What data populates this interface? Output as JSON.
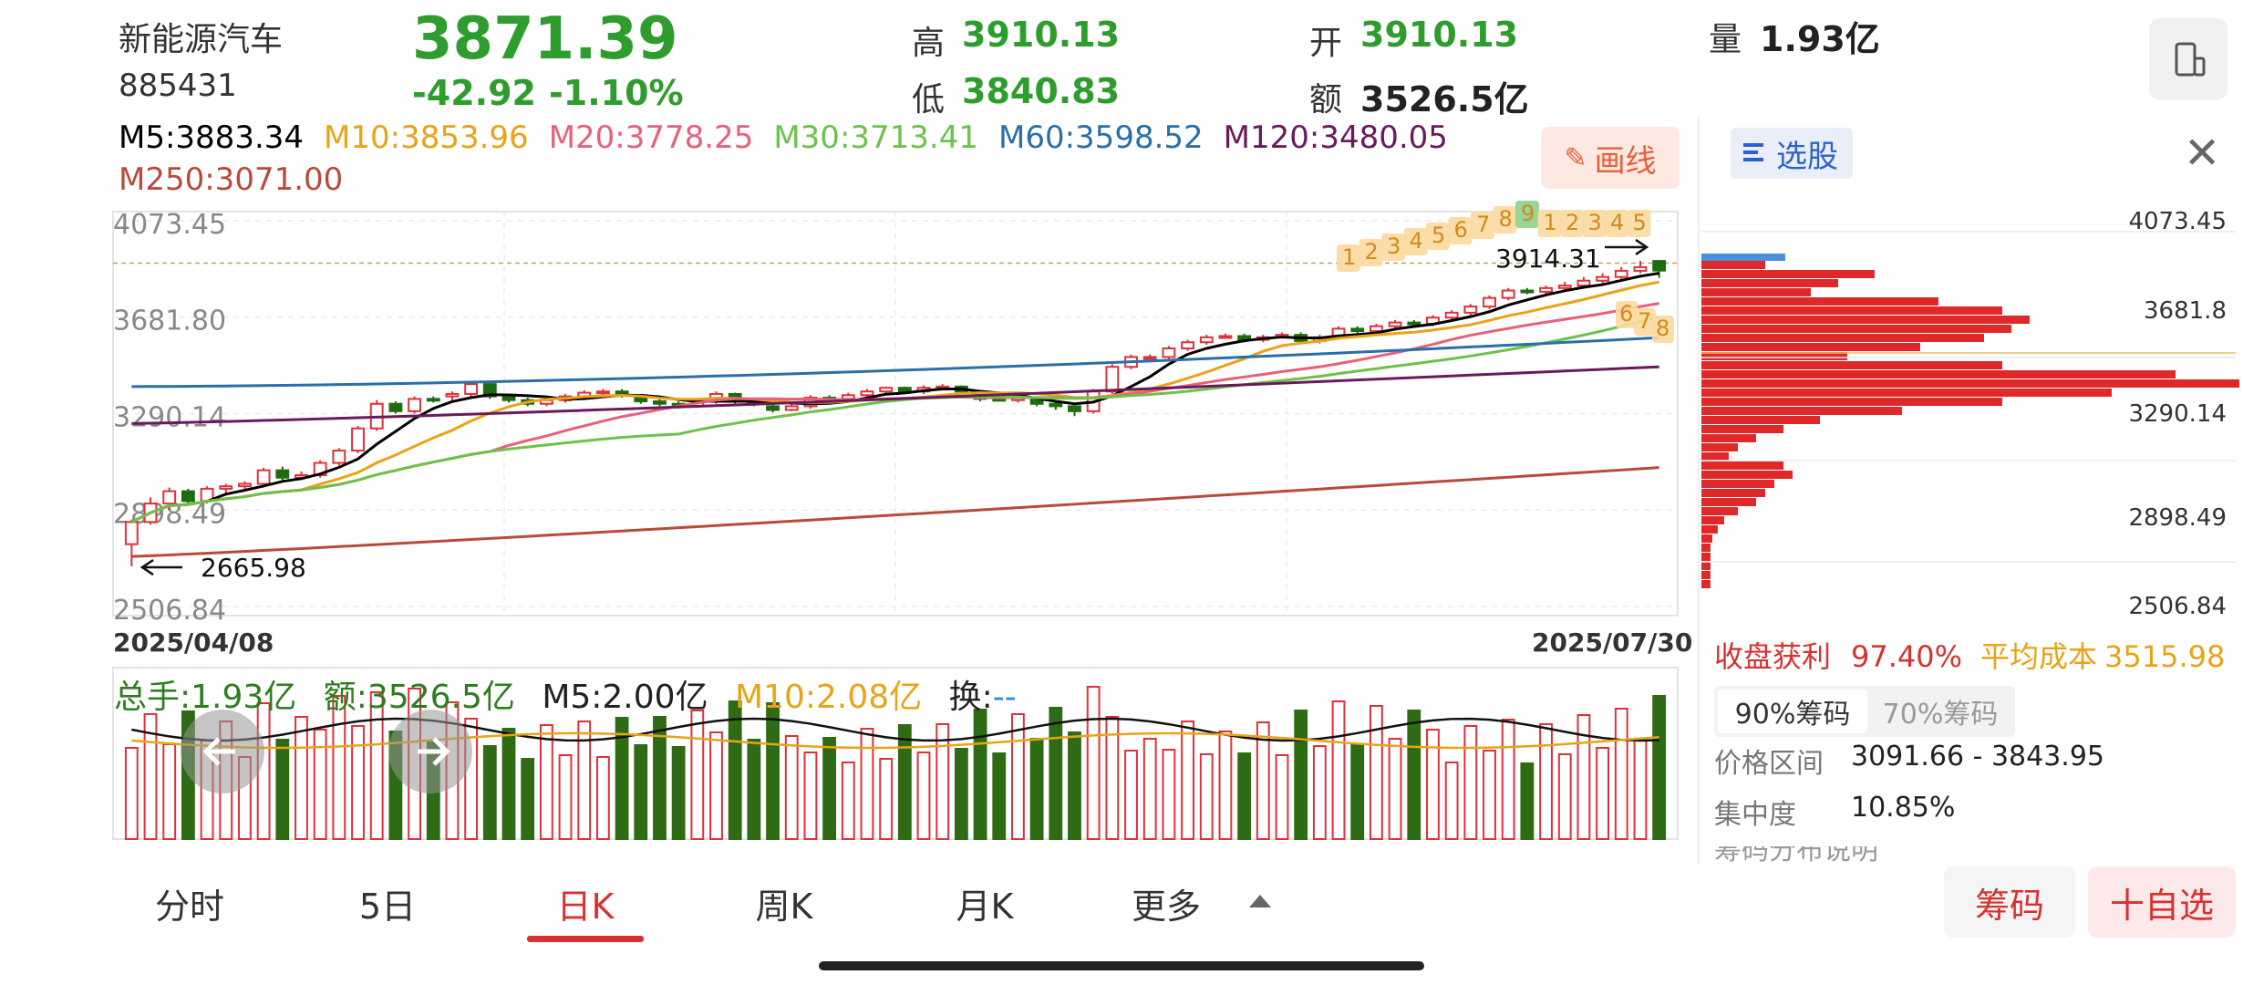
{
  "header": {
    "name": "新能源汽车",
    "code": "885431",
    "price": "3871.39",
    "change": "-42.92",
    "change_pct": "-1.10%",
    "high_label": "高",
    "high_value": "3910.13",
    "low_label": "低",
    "low_value": "3840.83",
    "open_label": "开",
    "open_value": "3910.13",
    "amount_label": "额",
    "amount_value": "3526.5亿",
    "volume_label": "量",
    "volume_value": "1.93亿"
  },
  "ma": [
    {
      "text": "M5:3883.34",
      "color": "#000000"
    },
    {
      "text": "M10:3853.96",
      "color": "#e8a317"
    },
    {
      "text": "M20:3778.25",
      "color": "#e8607a"
    },
    {
      "text": "M30:3713.41",
      "color": "#6cc24a"
    },
    {
      "text": "M60:3598.52",
      "color": "#2a6fa8"
    },
    {
      "text": "M120:3480.05",
      "color": "#6a1a5c"
    },
    {
      "text": "M250:3071.00",
      "color": "#b94a3a"
    }
  ],
  "draw_button": "画线",
  "chart_data": {
    "type": "candlestick",
    "y_ticks": [
      "4073.45",
      "3681.80",
      "3290.14",
      "2898.49",
      "2506.84"
    ],
    "ylim": [
      2506.84,
      4073.45
    ],
    "date_start": "2025/04/08",
    "date_end": "2025/07/30",
    "annotation_high": "3914.31",
    "annotation_low": "2665.98",
    "seq_labels_top": [
      "1",
      "2",
      "3",
      "4",
      "5",
      "6",
      "7",
      "8",
      "9",
      "1",
      "2",
      "3",
      "4",
      "5"
    ],
    "seq_labels_bottom": [
      "6",
      "7",
      "8"
    ],
    "candles": [
      [
        2760,
        2850,
        2670,
        2860
      ],
      [
        2850,
        2925,
        2840,
        2950
      ],
      [
        2925,
        2975,
        2900,
        2990
      ],
      [
        2975,
        2935,
        2920,
        2985
      ],
      [
        2935,
        2985,
        2925,
        2995
      ],
      [
        2985,
        2995,
        2965,
        3005
      ],
      [
        2995,
        3005,
        2985,
        3015
      ],
      [
        3005,
        3060,
        2995,
        3070
      ],
      [
        3060,
        3030,
        3020,
        3075
      ],
      [
        3030,
        3040,
        3020,
        3055
      ],
      [
        3040,
        3090,
        3030,
        3100
      ],
      [
        3090,
        3140,
        3080,
        3150
      ],
      [
        3140,
        3230,
        3130,
        3240
      ],
      [
        3230,
        3330,
        3220,
        3345
      ],
      [
        3330,
        3300,
        3290,
        3340
      ],
      [
        3300,
        3350,
        3290,
        3360
      ],
      [
        3350,
        3345,
        3335,
        3360
      ],
      [
        3360,
        3370,
        3345,
        3380
      ],
      [
        3370,
        3410,
        3360,
        3420
      ],
      [
        3410,
        3360,
        3350,
        3415
      ],
      [
        3360,
        3345,
        3335,
        3370
      ],
      [
        3345,
        3330,
        3320,
        3355
      ],
      [
        3330,
        3345,
        3320,
        3355
      ],
      [
        3345,
        3360,
        3335,
        3370
      ],
      [
        3360,
        3375,
        3350,
        3385
      ],
      [
        3375,
        3380,
        3365,
        3390
      ],
      [
        3380,
        3365,
        3355,
        3390
      ],
      [
        3365,
        3340,
        3330,
        3370
      ],
      [
        3340,
        3330,
        3320,
        3350
      ],
      [
        3330,
        3320,
        3310,
        3340
      ],
      [
        3320,
        3340,
        3315,
        3350
      ],
      [
        3340,
        3370,
        3330,
        3380
      ],
      [
        3370,
        3340,
        3330,
        3375
      ],
      [
        3340,
        3330,
        3320,
        3350
      ],
      [
        3320,
        3305,
        3295,
        3330
      ],
      [
        3305,
        3320,
        3300,
        3330
      ],
      [
        3320,
        3355,
        3310,
        3365
      ],
      [
        3355,
        3350,
        3345,
        3365
      ],
      [
        3350,
        3365,
        3345,
        3375
      ],
      [
        3365,
        3380,
        3360,
        3390
      ],
      [
        3380,
        3395,
        3370,
        3400
      ],
      [
        3395,
        3380,
        3370,
        3400
      ],
      [
        3380,
        3395,
        3370,
        3405
      ],
      [
        3395,
        3400,
        3385,
        3410
      ],
      [
        3400,
        3380,
        3370,
        3405
      ],
      [
        3380,
        3350,
        3340,
        3385
      ],
      [
        3350,
        3345,
        3340,
        3360
      ],
      [
        3345,
        3355,
        3335,
        3365
      ],
      [
        3355,
        3330,
        3320,
        3360
      ],
      [
        3330,
        3320,
        3305,
        3340
      ],
      [
        3320,
        3300,
        3280,
        3325
      ],
      [
        3300,
        3380,
        3290,
        3390
      ],
      [
        3380,
        3480,
        3370,
        3490
      ],
      [
        3480,
        3520,
        3470,
        3530
      ],
      [
        3520,
        3520,
        3510,
        3530
      ],
      [
        3520,
        3555,
        3510,
        3565
      ],
      [
        3555,
        3580,
        3545,
        3590
      ],
      [
        3580,
        3600,
        3570,
        3610
      ],
      [
        3600,
        3605,
        3595,
        3615
      ],
      [
        3605,
        3590,
        3580,
        3615
      ],
      [
        3590,
        3600,
        3580,
        3610
      ],
      [
        3600,
        3610,
        3595,
        3620
      ],
      [
        3610,
        3585,
        3575,
        3620
      ],
      [
        3585,
        3600,
        3575,
        3610
      ],
      [
        3600,
        3635,
        3590,
        3645
      ],
      [
        3635,
        3625,
        3615,
        3645
      ],
      [
        3625,
        3645,
        3615,
        3655
      ],
      [
        3645,
        3660,
        3635,
        3670
      ],
      [
        3660,
        3655,
        3645,
        3670
      ],
      [
        3655,
        3680,
        3645,
        3690
      ],
      [
        3680,
        3700,
        3670,
        3710
      ],
      [
        3700,
        3725,
        3690,
        3735
      ],
      [
        3725,
        3760,
        3715,
        3770
      ],
      [
        3760,
        3790,
        3750,
        3800
      ],
      [
        3790,
        3785,
        3775,
        3800
      ],
      [
        3785,
        3800,
        3775,
        3810
      ],
      [
        3800,
        3810,
        3790,
        3825
      ],
      [
        3810,
        3830,
        3800,
        3845
      ],
      [
        3830,
        3845,
        3820,
        3860
      ],
      [
        3845,
        3870,
        3835,
        3885
      ],
      [
        3870,
        3885,
        3860,
        3910
      ],
      [
        3910,
        3871,
        3841,
        3910
      ]
    ]
  },
  "volume": {
    "total_label": "总手:1.93亿",
    "amount_label": "额:3526.5亿",
    "m5_label": "M5:2.00亿",
    "m10_label": "M10:2.08亿",
    "turnover_label": "换:",
    "turnover_value": "--"
  },
  "chips": {
    "pick_button": "选股",
    "price_labels": [
      "4073.45",
      "3681.8",
      "3290.14",
      "2898.49",
      "2506.84"
    ],
    "profit_label": "收盘获利",
    "profit_value": "97.40%",
    "avg_cost_label": "平均成本",
    "avg_cost_value": "3515.98",
    "seg_90": "90%筹码",
    "seg_70": "70%筹码",
    "range_label": "价格区间",
    "range_value": "3091.66 - 3843.95",
    "concentration_label": "集中度",
    "concentration_value": "10.85%",
    "dist_label": "筹码分布说明"
  },
  "tabs": [
    "分时",
    "5日",
    "日K",
    "周K",
    "月K",
    "更多"
  ],
  "actions": {
    "chips": "筹码",
    "add_watch": "十自选"
  }
}
